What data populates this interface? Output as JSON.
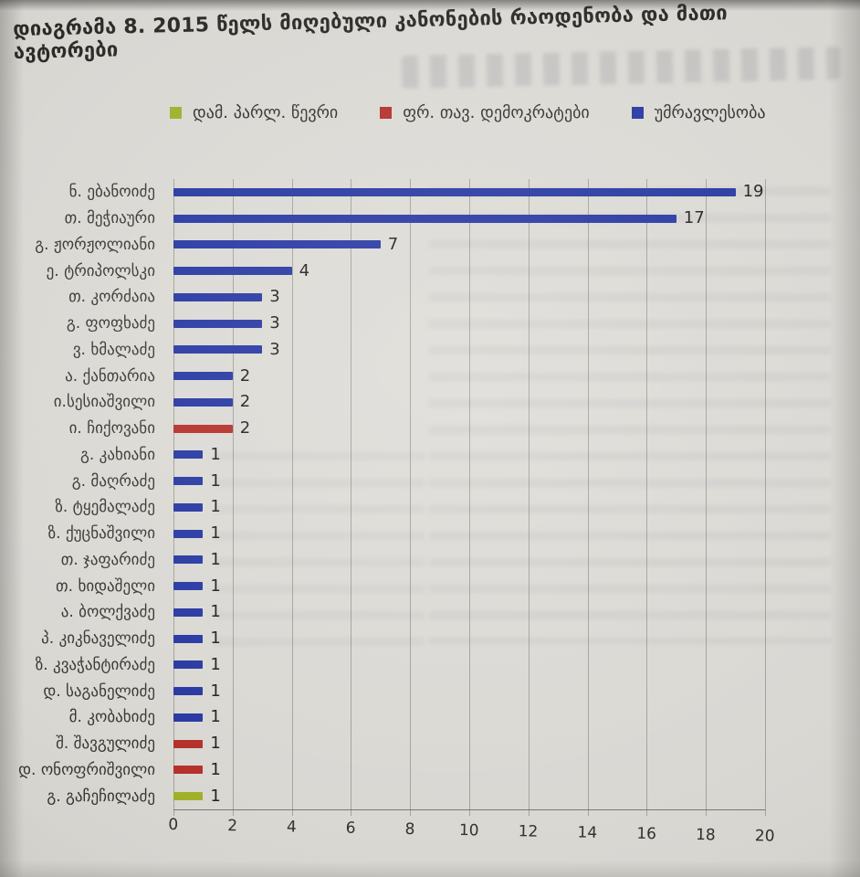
{
  "title": "დიაგრამა 8. 2015 წელს მიღებული კანონების რაოდენობა და მათი ავტორები",
  "legend": {
    "items": [
      {
        "label": "დამ. პარლ. წევრი",
        "color": "#9fae27"
      },
      {
        "label": "ფრ. თავ. დემოკრატები",
        "color": "#b32c26"
      },
      {
        "label": "უმრავლესობა",
        "color": "#2334a0"
      }
    ]
  },
  "chart_data": {
    "type": "bar",
    "orientation": "horizontal",
    "title": "დიაგრამა 8. 2015 წელს მიღებული კანონების რაოდენობა და მათი ავტორები",
    "xlabel": "",
    "ylabel": "",
    "xlim": [
      0,
      20
    ],
    "xticks": [
      0,
      2,
      4,
      6,
      8,
      10,
      12,
      14,
      16,
      18,
      20
    ],
    "grid": true,
    "legend_position": "top",
    "value_labels": true,
    "series_colors": {
      "დამ. პარლ. წევრი": "#9fae27",
      "ფრ. თავ. დემოკრატები": "#b32c26",
      "უმრავლესობა": "#2334a0"
    },
    "bars": [
      {
        "category": "ნ. ებანოიძე",
        "value": 19,
        "series": "უმრავლესობა"
      },
      {
        "category": "თ. მეჭიაური",
        "value": 17,
        "series": "უმრავლესობა"
      },
      {
        "category": "გ. ჟორჟოლიანი",
        "value": 7,
        "series": "უმრავლესობა"
      },
      {
        "category": "ე. ტრიპოლსკი",
        "value": 4,
        "series": "უმრავლესობა"
      },
      {
        "category": "თ. კორძაია",
        "value": 3,
        "series": "უმრავლესობა"
      },
      {
        "category": "გ. ფოფხაძე",
        "value": 3,
        "series": "უმრავლესობა"
      },
      {
        "category": "ვ. ხმალაძე",
        "value": 3,
        "series": "უმრავლესობა"
      },
      {
        "category": "ა. ქანთარია",
        "value": 2,
        "series": "უმრავლესობა"
      },
      {
        "category": "ი.სესიაშვილი",
        "value": 2,
        "series": "უმრავლესობა"
      },
      {
        "category": "ი. ჩიქოვანი",
        "value": 2,
        "series": "ფრ. თავ. დემოკრატები"
      },
      {
        "category": "გ. კახიანი",
        "value": 1,
        "series": "უმრავლესობა"
      },
      {
        "category": "გ. მაღრაძე",
        "value": 1,
        "series": "უმრავლესობა"
      },
      {
        "category": "ზ. ტყემალაძე",
        "value": 1,
        "series": "უმრავლესობა"
      },
      {
        "category": "ზ. ქუცნაშვილი",
        "value": 1,
        "series": "უმრავლესობა"
      },
      {
        "category": "თ. ჯაფარიძე",
        "value": 1,
        "series": "უმრავლესობა"
      },
      {
        "category": "თ. ხიდაშელი",
        "value": 1,
        "series": "უმრავლესობა"
      },
      {
        "category": "ა. ბოლქვაძე",
        "value": 1,
        "series": "უმრავლესობა"
      },
      {
        "category": "პ. კიკნაველიძე",
        "value": 1,
        "series": "უმრავლესობა"
      },
      {
        "category": "ზ. კვაჭანტირაძე",
        "value": 1,
        "series": "უმრავლესობა"
      },
      {
        "category": "დ. საგანელიძე",
        "value": 1,
        "series": "უმრავლესობა"
      },
      {
        "category": "მ. კობახიძე",
        "value": 1,
        "series": "უმრავლესობა"
      },
      {
        "category": "შ. შავგულიძე",
        "value": 1,
        "series": "ფრ. თავ. დემოკრატები"
      },
      {
        "category": "დ. ონოფრიშვილი",
        "value": 1,
        "series": "ფრ. თავ. დემოკრატები"
      },
      {
        "category": "გ. გაჩეჩილაძე",
        "value": 1,
        "series": "დამ. პარლ. წევრი"
      }
    ]
  }
}
